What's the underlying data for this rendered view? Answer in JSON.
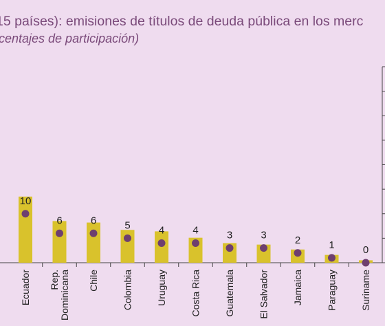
{
  "header": {
    "title_line1": "15 países): emisiones de títulos de deuda pública en los merc",
    "title_line2": "rcentajes de participación)"
  },
  "colors": {
    "background": "#efdcef",
    "bar": "#d9c22c",
    "marker": "#6e3f6f",
    "axis": "#444444"
  },
  "chart_data": {
    "type": "bar",
    "categories": [
      "Ecuador",
      "Rep. Dominicana",
      "Chile",
      "Colombia",
      "Uruguay",
      "Costa Rica",
      "Guatemala",
      "El Salvador",
      "Jamaica",
      "Paraguay",
      "Suriname"
    ],
    "category_lines": [
      [
        "Ecuador"
      ],
      [
        "Rep.",
        "Dominicana"
      ],
      [
        "Chile"
      ],
      [
        "Colombia"
      ],
      [
        "Uruguay"
      ],
      [
        "Costa Rica"
      ],
      [
        "Guatemala"
      ],
      [
        "El Salvador"
      ],
      [
        "Jamaica"
      ],
      [
        "Paraguay"
      ],
      [
        "Suriname"
      ]
    ],
    "series": [
      {
        "kind": "bar",
        "values": [
          13.5,
          8.5,
          8.2,
          6.7,
          6.4,
          5.1,
          4.0,
          3.7,
          2.7,
          1.6,
          0.5
        ]
      },
      {
        "kind": "dot",
        "values": [
          10,
          6,
          6,
          5,
          4,
          4,
          3,
          3,
          2,
          1,
          0
        ]
      }
    ],
    "data_labels": [
      "10",
      "6",
      "6",
      "5",
      "4",
      "4",
      "3",
      "3",
      "2",
      "1",
      "0"
    ],
    "ylim": [
      0,
      40
    ],
    "grid": false
  }
}
